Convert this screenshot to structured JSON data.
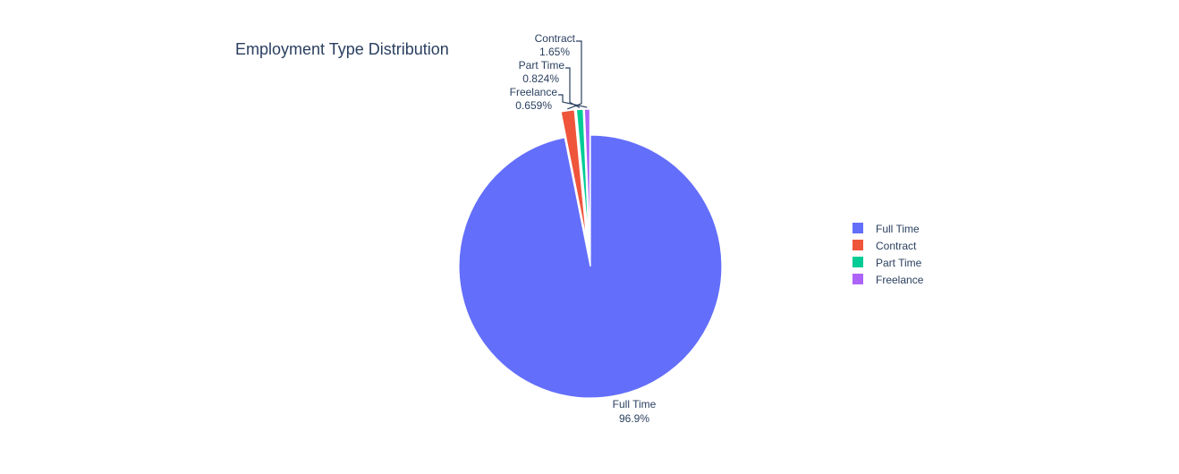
{
  "chart_data": {
    "type": "pie",
    "title": "Employment Type Distribution",
    "slices": [
      {
        "name": "Full Time",
        "percent": 96.9,
        "percent_label": "96.9%",
        "color": "#636efa",
        "pulled": false
      },
      {
        "name": "Contract",
        "percent": 1.65,
        "percent_label": "1.65%",
        "color": "#ef553b",
        "pulled": true
      },
      {
        "name": "Part Time",
        "percent": 0.824,
        "percent_label": "0.824%",
        "color": "#00cc96",
        "pulled": true
      },
      {
        "name": "Freelance",
        "percent": 0.659,
        "percent_label": "0.659%",
        "color": "#ab63fa",
        "pulled": true
      }
    ],
    "legend": {
      "placement": "right",
      "items": [
        "Full Time",
        "Contract",
        "Part Time",
        "Freelance"
      ]
    },
    "direction": "clockwise",
    "start": "top"
  }
}
